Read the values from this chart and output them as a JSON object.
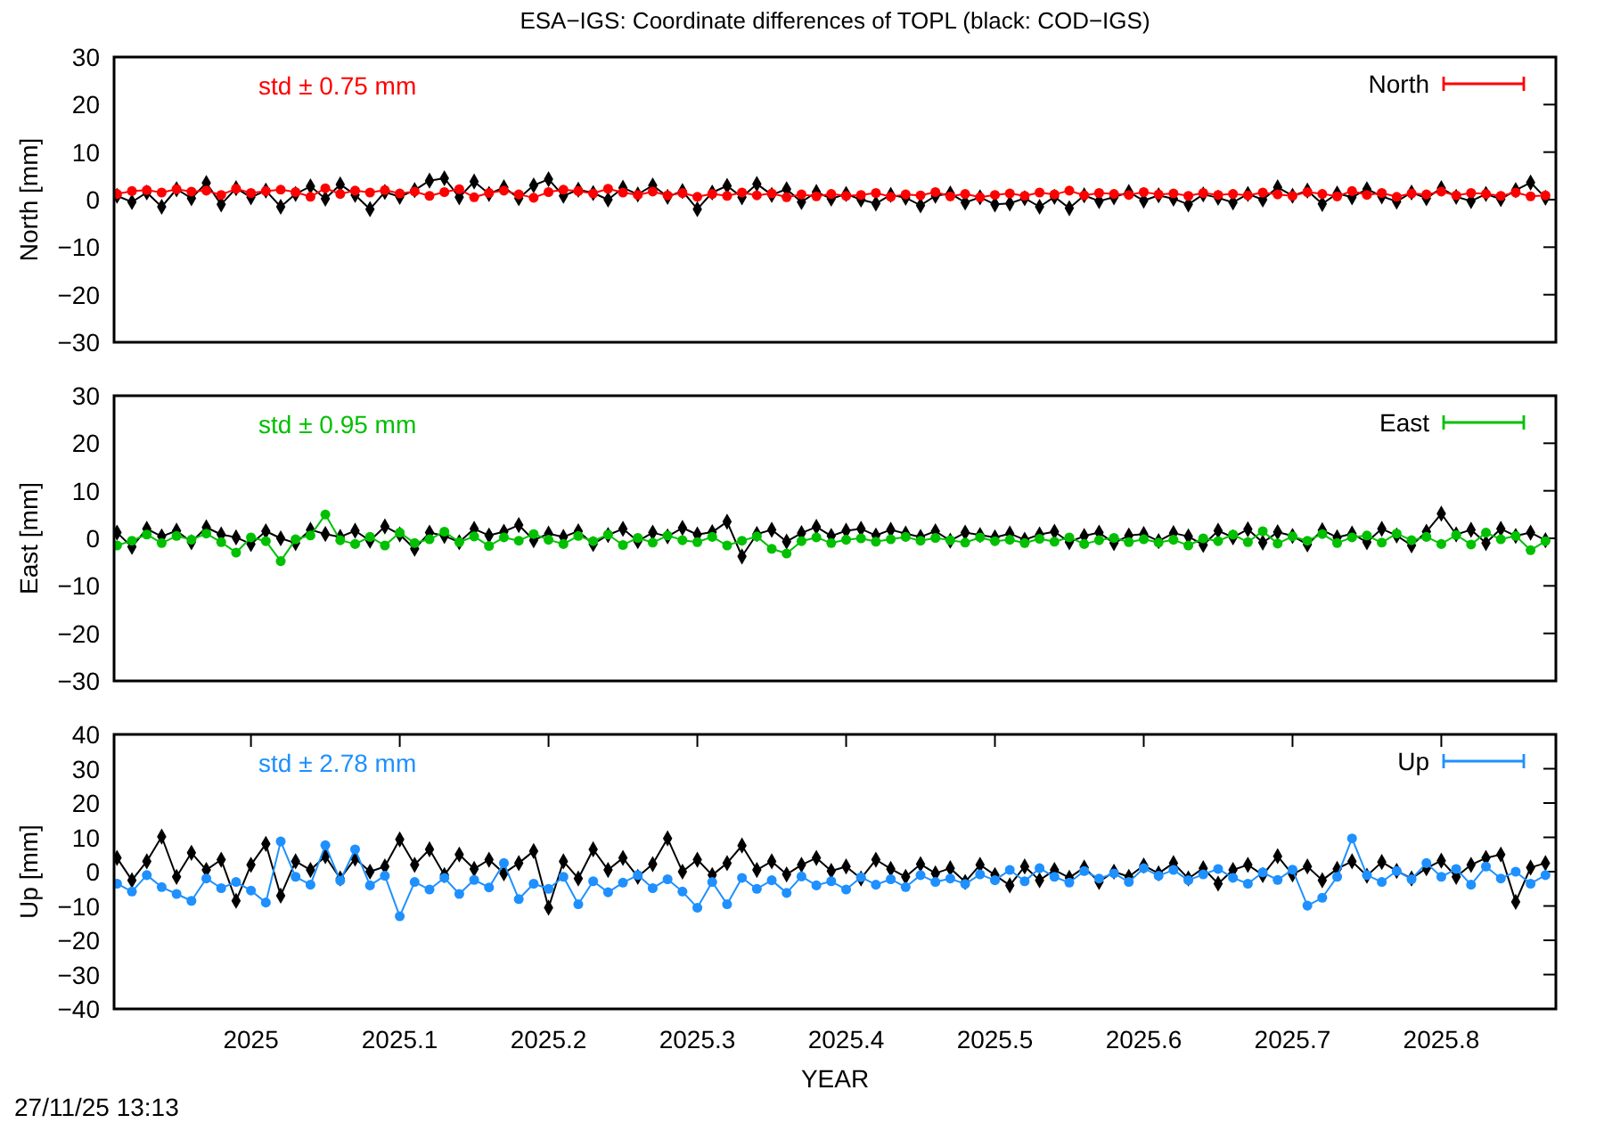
{
  "chart_data": [
    {
      "type": "line",
      "title": "ESA−IGS: Coordinate differences of TOPL (black: COD−IGS)",
      "ylabel": "North [mm]",
      "annotations": [
        "std ± 0.75 mm"
      ],
      "x": [
        2024.91,
        2024.92,
        2024.93,
        2024.94,
        2024.95,
        2024.96,
        2024.97,
        2024.98,
        2024.99,
        2025,
        2025.01,
        2025.02,
        2025.03,
        2025.04,
        2025.05,
        2025.06,
        2025.07,
        2025.08,
        2025.09,
        2025.1,
        2025.11,
        2025.12,
        2025.13,
        2025.14,
        2025.15,
        2025.16,
        2025.17,
        2025.18,
        2025.19,
        2025.2,
        2025.21,
        2025.22,
        2025.23,
        2025.24,
        2025.25,
        2025.26,
        2025.27,
        2025.28,
        2025.29,
        2025.3,
        2025.31,
        2025.32,
        2025.33,
        2025.34,
        2025.35,
        2025.36,
        2025.37,
        2025.38,
        2025.39,
        2025.4,
        2025.41,
        2025.42,
        2025.43,
        2025.44,
        2025.45,
        2025.46,
        2025.47,
        2025.48,
        2025.49,
        2025.5,
        2025.51,
        2025.52,
        2025.53,
        2025.54,
        2025.55,
        2025.56,
        2025.57,
        2025.58,
        2025.59,
        2025.6,
        2025.61,
        2025.62,
        2025.63,
        2025.64,
        2025.65,
        2025.66,
        2025.67,
        2025.68,
        2025.69,
        2025.7,
        2025.71,
        2025.72,
        2025.73,
        2025.74,
        2025.75,
        2025.76,
        2025.77,
        2025.78,
        2025.79,
        2025.8,
        2025.81,
        2025.82,
        2025.83,
        2025.84,
        2025.85,
        2025.86,
        2025.87
      ],
      "series": [
        {
          "color": "#000000",
          "marker": "diamond",
          "values": [
            0.8,
            -0.5,
            1.5,
            -1.5,
            2.2,
            0.3,
            3.5,
            -1.0,
            2.4,
            0.5,
            1.9,
            -1.5,
            1.2,
            2.8,
            0.2,
            3.2,
            1.0,
            -2.0,
            1.6,
            0.6,
            2.0,
            4.0,
            4.5,
            0.5,
            3.8,
            1.2,
            2.6,
            0.3,
            3.0,
            4.3,
            0.8,
            2.1,
            1.4,
            0.0,
            2.5,
            1.1,
            3.0,
            0.6,
            1.8,
            -2.0,
            1.5,
            2.9,
            0.5,
            3.3,
            1.0,
            2.2,
            -0.5,
            1.6,
            0.2,
            1.2,
            0.0,
            -0.8,
            1.0,
            0.4,
            -1.2,
            0.8,
            1.3,
            -0.6,
            0.5,
            -1.0,
            -0.8,
            0.3,
            -1.5,
            0.6,
            -1.8,
            0.9,
            -0.3,
            0.5,
            1.6,
            -0.2,
            0.9,
            0.2,
            -1.0,
            1.1,
            0.4,
            -0.6,
            1.2,
            0.0,
            2.6,
            0.8,
            1.9,
            -0.9,
            1.3,
            0.5,
            2.2,
            0.7,
            -0.4,
            1.5,
            0.3,
            2.4,
            0.6,
            -0.3,
            1.2,
            0.1,
            2.0,
            3.6,
            0.4
          ]
        },
        {
          "name": "North",
          "color": "#ff0000",
          "values": [
            1.2,
            1.8,
            2.0,
            1.5,
            2.2,
            1.7,
            1.9,
            1.0,
            2.3,
            1.4,
            1.8,
            2.1,
            1.6,
            0.6,
            2.4,
            1.2,
            1.9,
            1.5,
            2.0,
            1.3,
            1.7,
            0.8,
            1.6,
            2.2,
            0.5,
            1.4,
            1.9,
            1.1,
            0.4,
            1.6,
            2.1,
            1.8,
            1.3,
            2.3,
            1.5,
            1.0,
            1.7,
            0.9,
            1.4,
            0.6,
            1.2,
            0.8,
            1.5,
            0.9,
            1.3,
            0.5,
            1.1,
            0.7,
            1.2,
            0.8,
            1.0,
            1.4,
            0.6,
            1.1,
            0.9,
            1.6,
            0.7,
            1.2,
            0.5,
            1.0,
            1.3,
            0.8,
            1.5,
            1.1,
            1.9,
            0.9,
            1.4,
            1.2,
            1.0,
            1.6,
            1.1,
            1.3,
            0.8,
            1.4,
            1.0,
            1.2,
            0.9,
            1.5,
            1.1,
            0.8,
            1.6,
            1.2,
            0.7,
            1.8,
            1.0,
            1.4,
            0.6,
            1.3,
            1.1,
            1.7,
            0.9,
            1.4,
            1.2,
            0.8,
            1.5,
            0.7,
            0.9
          ]
        }
      ],
      "xlim": [
        2024.908,
        2025.877
      ],
      "ylim": [
        -30,
        30
      ],
      "yticks": [
        -30,
        -20,
        -10,
        0,
        10,
        20,
        30
      ],
      "tick_labels": "y",
      "legend": "top right",
      "marker": "circle"
    },
    {
      "type": "line",
      "ylabel": "East [mm]",
      "annotations": [
        "std ± 0.95 mm"
      ],
      "x": [
        2024.91,
        2024.92,
        2024.93,
        2024.94,
        2024.95,
        2024.96,
        2024.97,
        2024.98,
        2024.99,
        2025,
        2025.01,
        2025.02,
        2025.03,
        2025.04,
        2025.05,
        2025.06,
        2025.07,
        2025.08,
        2025.09,
        2025.1,
        2025.11,
        2025.12,
        2025.13,
        2025.14,
        2025.15,
        2025.16,
        2025.17,
        2025.18,
        2025.19,
        2025.2,
        2025.21,
        2025.22,
        2025.23,
        2025.24,
        2025.25,
        2025.26,
        2025.27,
        2025.28,
        2025.29,
        2025.3,
        2025.31,
        2025.32,
        2025.33,
        2025.34,
        2025.35,
        2025.36,
        2025.37,
        2025.38,
        2025.39,
        2025.4,
        2025.41,
        2025.42,
        2025.43,
        2025.44,
        2025.45,
        2025.46,
        2025.47,
        2025.48,
        2025.49,
        2025.5,
        2025.51,
        2025.52,
        2025.53,
        2025.54,
        2025.55,
        2025.56,
        2025.57,
        2025.58,
        2025.59,
        2025.6,
        2025.61,
        2025.62,
        2025.63,
        2025.64,
        2025.65,
        2025.66,
        2025.67,
        2025.68,
        2025.69,
        2025.7,
        2025.71,
        2025.72,
        2025.73,
        2025.74,
        2025.75,
        2025.76,
        2025.77,
        2025.78,
        2025.79,
        2025.8,
        2025.81,
        2025.82,
        2025.83,
        2025.84,
        2025.85,
        2025.86,
        2025.87
      ],
      "series": [
        {
          "color": "#000000",
          "marker": "diamond",
          "values": [
            1.2,
            -1.8,
            2.0,
            0.4,
            1.6,
            -0.8,
            2.3,
            0.8,
            0.2,
            -1.2,
            1.5,
            0.0,
            -1.0,
            1.8,
            0.9,
            0.3,
            1.6,
            -0.5,
            2.5,
            0.8,
            -2.2,
            1.2,
            0.5,
            -0.8,
            2.0,
            0.6,
            1.4,
            2.8,
            -0.4,
            1.0,
            0.3,
            1.5,
            -1.2,
            0.7,
            2.0,
            -0.6,
            1.2,
            0.4,
            2.2,
            0.8,
            1.3,
            3.5,
            -3.8,
            0.9,
            1.8,
            -0.7,
            1.1,
            2.4,
            0.5,
            1.6,
            2.0,
            0.6,
            1.8,
            1.0,
            0.3,
            1.5,
            -0.5,
            1.2,
            0.7,
            0.2,
            1.0,
            -0.3,
            0.8,
            1.4,
            -0.8,
            0.5,
            1.2,
            -1.0,
            0.6,
            0.9,
            -0.6,
            1.1,
            0.4,
            -1.4,
            1.6,
            0.2,
            1.9,
            -0.9,
            1.3,
            0.5,
            -1.3,
            1.7,
            0.2,
            1.0,
            -0.8,
            2.0,
            0.6,
            -1.5,
            1.4,
            5.2,
            0.8,
            1.8,
            -1.0,
            2.0,
            0.5,
            1.2,
            -0.4
          ]
        },
        {
          "name": "East",
          "color": "#00c000",
          "values": [
            -1.5,
            -0.5,
            0.8,
            -1.0,
            0.5,
            -0.3,
            1.0,
            -0.8,
            -3.0,
            0.2,
            -0.6,
            -4.8,
            -0.2,
            0.6,
            5.0,
            -0.4,
            -1.2,
            0.3,
            -1.5,
            1.2,
            -1.0,
            -0.2,
            1.4,
            -0.8,
            0.4,
            -1.6,
            0.2,
            -0.5,
            0.9,
            -0.3,
            -1.2,
            0.5,
            -0.6,
            0.8,
            -1.4,
            0.1,
            -0.9,
            0.6,
            -0.4,
            -0.8,
            0.3,
            -1.5,
            -0.5,
            0.4,
            -2.2,
            -3.2,
            -0.6,
            0.2,
            -1.0,
            -0.3,
            0.0,
            -0.7,
            -0.2,
            0.3,
            -0.5,
            0.1,
            -0.4,
            -0.9,
            0.2,
            -0.6,
            -0.3,
            -1.0,
            -0.1,
            -0.7,
            0.2,
            -1.2,
            -0.4,
            0.1,
            -0.8,
            -0.2,
            -0.9,
            -0.3,
            -1.5,
            0.0,
            -0.6,
            0.8,
            -0.8,
            1.5,
            -1.1,
            0.4,
            -0.5,
            0.9,
            -1.0,
            0.2,
            0.6,
            -0.9,
            1.0,
            -0.4,
            0.3,
            -1.2,
            0.7,
            -1.3,
            1.2,
            -0.2,
            0.5,
            -2.5,
            -0.6
          ]
        }
      ],
      "xlim": [
        2024.908,
        2025.877
      ],
      "ylim": [
        -30,
        30
      ],
      "yticks": [
        -30,
        -20,
        -10,
        0,
        10,
        20,
        30
      ],
      "tick_labels": "y",
      "legend": "top right",
      "marker": "circle"
    },
    {
      "type": "line",
      "xlabel": "YEAR",
      "ylabel": "Up [mm]",
      "annotations": [
        "std ± 2.78 mm",
        "27/11/25 13:13"
      ],
      "x": [
        2024.91,
        2024.92,
        2024.93,
        2024.94,
        2024.95,
        2024.96,
        2024.97,
        2024.98,
        2024.99,
        2025,
        2025.01,
        2025.02,
        2025.03,
        2025.04,
        2025.05,
        2025.06,
        2025.07,
        2025.08,
        2025.09,
        2025.1,
        2025.11,
        2025.12,
        2025.13,
        2025.14,
        2025.15,
        2025.16,
        2025.17,
        2025.18,
        2025.19,
        2025.2,
        2025.21,
        2025.22,
        2025.23,
        2025.24,
        2025.25,
        2025.26,
        2025.27,
        2025.28,
        2025.29,
        2025.3,
        2025.31,
        2025.32,
        2025.33,
        2025.34,
        2025.35,
        2025.36,
        2025.37,
        2025.38,
        2025.39,
        2025.4,
        2025.41,
        2025.42,
        2025.43,
        2025.44,
        2025.45,
        2025.46,
        2025.47,
        2025.48,
        2025.49,
        2025.5,
        2025.51,
        2025.52,
        2025.53,
        2025.54,
        2025.55,
        2025.56,
        2025.57,
        2025.58,
        2025.59,
        2025.6,
        2025.61,
        2025.62,
        2025.63,
        2025.64,
        2025.65,
        2025.66,
        2025.67,
        2025.68,
        2025.69,
        2025.7,
        2025.71,
        2025.72,
        2025.73,
        2025.74,
        2025.75,
        2025.76,
        2025.77,
        2025.78,
        2025.79,
        2025.8,
        2025.81,
        2025.82,
        2025.83,
        2025.84,
        2025.85,
        2025.86,
        2025.87
      ],
      "series": [
        {
          "color": "#000000",
          "marker": "diamond",
          "values": [
            4.0,
            -2.5,
            3.0,
            10.2,
            -1.5,
            5.5,
            0.5,
            3.5,
            -8.5,
            2.0,
            8.1,
            -7.0,
            3.0,
            0.5,
            4.5,
            -2.0,
            3.8,
            0.0,
            1.5,
            9.4,
            2.0,
            6.5,
            -1.0,
            5.0,
            0.8,
            3.5,
            -0.5,
            2.5,
            6.0,
            -10.5,
            3.0,
            -2.0,
            6.5,
            0.5,
            4.0,
            -1.5,
            2.2,
            9.7,
            0.0,
            3.5,
            -1.0,
            2.5,
            7.6,
            0.5,
            3.0,
            -0.8,
            2.0,
            4.0,
            0.2,
            1.5,
            -2.0,
            3.5,
            0.8,
            -1.5,
            2.2,
            -0.5,
            1.0,
            -3.0,
            2.0,
            -1.0,
            -4.0,
            1.5,
            -2.5,
            0.5,
            -1.8,
            1.2,
            -3.0,
            0.0,
            -1.5,
            1.8,
            -0.5,
            2.5,
            -2.0,
            1.0,
            -3.5,
            0.5,
            2.0,
            -1.0,
            4.5,
            -0.8,
            1.5,
            -2.5,
            0.8,
            3.0,
            -1.2,
            2.8,
            0.2,
            -2.0,
            1.0,
            3.2,
            -1.5,
            2.0,
            4.0,
            5.0,
            -8.8,
            1.2,
            2.5
          ]
        },
        {
          "name": "Up",
          "color": "#1e90ff",
          "values": [
            -3.5,
            -5.8,
            -1.0,
            -4.5,
            -6.5,
            -8.5,
            -2.0,
            -4.8,
            -3.0,
            -5.5,
            -9.0,
            8.8,
            -1.5,
            -3.8,
            7.7,
            -2.6,
            6.5,
            -4.0,
            -1.2,
            -13.0,
            -3.0,
            -5.2,
            -1.8,
            -6.5,
            -2.4,
            -4.6,
            2.5,
            -8.0,
            -3.5,
            -5.0,
            -1.5,
            -9.5,
            -2.8,
            -6.0,
            -3.2,
            -1.0,
            -4.8,
            -2.2,
            -5.8,
            -10.5,
            -3.0,
            -9.5,
            -1.8,
            -5.0,
            -2.5,
            -6.2,
            -1.4,
            -4.0,
            -2.8,
            -5.2,
            -1.6,
            -3.8,
            -2.2,
            -4.5,
            -1.0,
            -3.0,
            -2.0,
            -3.6,
            -0.8,
            -2.5,
            0.5,
            -2.8,
            1.0,
            -1.5,
            -3.2,
            0.2,
            -2.0,
            -0.5,
            -3.0,
            1.0,
            -1.2,
            0.5,
            -2.5,
            -0.8,
            0.8,
            -1.8,
            -3.5,
            -0.2,
            -2.4,
            0.6,
            -9.9,
            -7.6,
            -1.5,
            9.7,
            -1.0,
            -3.0,
            0.2,
            -2.2,
            2.5,
            -1.5,
            0.8,
            -3.8,
            1.5,
            -2.0,
            0.0,
            -3.5,
            -1.0
          ]
        }
      ],
      "xlim": [
        2024.908,
        2025.877
      ],
      "xticks": [
        2025,
        2025.1,
        2025.2,
        2025.3,
        2025.4,
        2025.5,
        2025.6,
        2025.7,
        2025.8
      ],
      "ylim": [
        -40,
        40
      ],
      "yticks": [
        -40,
        -30,
        -20,
        -10,
        0,
        10,
        20,
        30,
        40
      ],
      "legend": "top right",
      "marker": "circle"
    }
  ]
}
